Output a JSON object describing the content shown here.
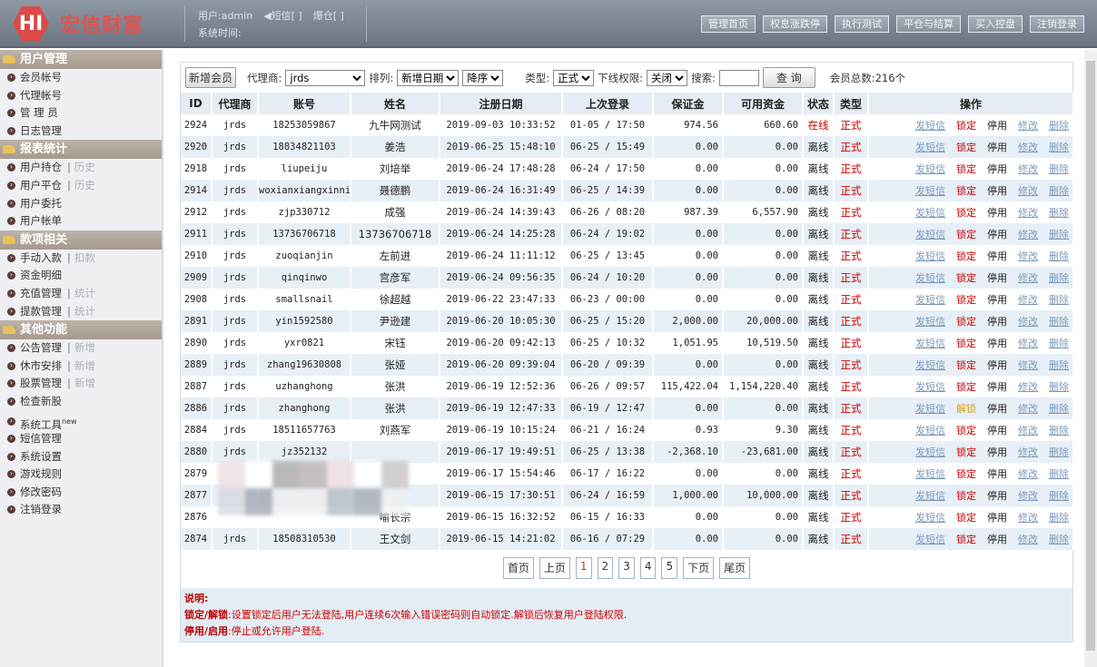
{
  "header": {
    "logo_mark": "HI",
    "logo_text": "宏信财富",
    "user": "用户:admin",
    "sms": "◀短信[ ]",
    "margin_call": "爆仓[ ]",
    "system_time": "系统时间:",
    "buttons": [
      "管理首页",
      "权息涨跌停",
      "执行测试",
      "平仓与结算",
      "买入控盘",
      "注销登录"
    ]
  },
  "sidebar": [
    {
      "title": "用户管理",
      "items": [
        {
          "label": "会员帐号"
        },
        {
          "label": "代理帐号"
        },
        {
          "label": "管 理 员"
        },
        {
          "label": "日志管理"
        }
      ]
    },
    {
      "title": "报表统计",
      "items": [
        {
          "label": "用户持仓",
          "sub": "历史"
        },
        {
          "label": "用户平仓",
          "sub": "历史"
        },
        {
          "label": "用户委托"
        },
        {
          "label": "用户帐单"
        }
      ]
    },
    {
      "title": "款项相关",
      "items": [
        {
          "label": "手动入款",
          "sub": "扣款"
        },
        {
          "label": "资金明细"
        },
        {
          "label": "充值管理",
          "sub": "统计"
        },
        {
          "label": "提款管理",
          "sub": "统计"
        }
      ]
    },
    {
      "title": "其他功能",
      "items": [
        {
          "label": "公告管理",
          "sub": "新增"
        },
        {
          "label": "休市安排",
          "sub": "新增"
        },
        {
          "label": "股票管理",
          "sub": "新增"
        },
        {
          "label": "检查新股"
        },
        {
          "label": "系统工具",
          "sup": "new"
        },
        {
          "label": "短信管理"
        },
        {
          "label": "系统设置"
        },
        {
          "label": "游戏规则"
        },
        {
          "label": "修改密码"
        },
        {
          "label": "注销登录"
        }
      ]
    }
  ],
  "toolbar": {
    "add_member": "新增会员",
    "agent_label": "代理商:",
    "agent_value": "jrds",
    "sort_label": "排列:",
    "sort_value": "新增日期",
    "order_value": "降序",
    "type_label": "类型:",
    "type_value": "正式",
    "downline_label": "下线权限:",
    "downline_value": "关闭",
    "search_label": "搜索:",
    "search_value": "",
    "query": "查 询",
    "total": "会员总数:216个"
  },
  "columns": [
    "ID",
    "代理商",
    "账号",
    "姓名",
    "注册日期",
    "上次登录",
    "保证金",
    "可用资金",
    "状态",
    "类型",
    "操作"
  ],
  "ops": {
    "sms": "发短信",
    "lock": "锁定",
    "unlock": "解锁",
    "disable": "停用",
    "edit": "修改",
    "delete": "删除"
  },
  "rows": [
    [
      "2924",
      "jrds",
      "18253059867",
      "九牛网测试",
      "2019-09-03 10:33:52",
      "01-05 / 17:50",
      "974.56",
      "660.60",
      "在线",
      "正式",
      "锁定"
    ],
    [
      "2920",
      "jrds",
      "18834821103",
      "姜浩",
      "2019-06-25 15:48:10",
      "06-25 / 15:49",
      "0.00",
      "0.00",
      "离线",
      "正式",
      "锁定"
    ],
    [
      "2918",
      "jrds",
      "liupeiju",
      "刘培举",
      "2019-06-24 17:48:28",
      "06-24 / 17:50",
      "0.00",
      "0.00",
      "离线",
      "正式",
      "锁定"
    ],
    [
      "2914",
      "jrds",
      "woxianxiangxinni",
      "聂德鹏",
      "2019-06-24 16:31:49",
      "06-25 / 14:39",
      "0.00",
      "0.00",
      "离线",
      "正式",
      "锁定"
    ],
    [
      "2912",
      "jrds",
      "zjp330712",
      "成强",
      "2019-06-24 14:39:43",
      "06-26 / 08:20",
      "987.39",
      "6,557.90",
      "离线",
      "正式",
      "锁定"
    ],
    [
      "2911",
      "jrds",
      "13736706718",
      "13736706718",
      "2019-06-24 14:25:28",
      "06-24 / 19:02",
      "0.00",
      "0.00",
      "离线",
      "正式",
      "锁定"
    ],
    [
      "2910",
      "jrds",
      "zuoqianjin",
      "左前进",
      "2019-06-24 11:11:12",
      "06-25 / 13:45",
      "0.00",
      "0.00",
      "离线",
      "正式",
      "锁定"
    ],
    [
      "2909",
      "jrds",
      "qinqinwo",
      "宫彦军",
      "2019-06-24 09:56:35",
      "06-24 / 10:20",
      "0.00",
      "0.00",
      "离线",
      "正式",
      "锁定"
    ],
    [
      "2908",
      "jrds",
      "smallsnail",
      "徐超越",
      "2019-06-22 23:47:33",
      "06-23 / 00:00",
      "0.00",
      "0.00",
      "离线",
      "正式",
      "锁定"
    ],
    [
      "2891",
      "jrds",
      "yin1592580",
      "尹逊建",
      "2019-06-20 10:05:30",
      "06-25 / 15:20",
      "2,000.00",
      "20,000.00",
      "离线",
      "正式",
      "锁定"
    ],
    [
      "2890",
      "jrds",
      "yxr0821",
      "宋钰",
      "2019-06-20 09:42:13",
      "06-25 / 10:32",
      "1,051.95",
      "10,519.50",
      "离线",
      "正式",
      "锁定"
    ],
    [
      "2889",
      "jrds",
      "zhang19630808",
      "张娅",
      "2019-06-20 09:39:04",
      "06-20 / 09:39",
      "0.00",
      "0.00",
      "离线",
      "正式",
      "锁定"
    ],
    [
      "2887",
      "jrds",
      "uzhanghong",
      "张洪",
      "2019-06-19 12:52:36",
      "06-26 / 09:57",
      "115,422.04",
      "1,154,220.40",
      "离线",
      "正式",
      "锁定"
    ],
    [
      "2886",
      "jrds",
      "zhanghong",
      "张洪",
      "2019-06-19 12:47:33",
      "06-19 / 12:47",
      "0.00",
      "0.00",
      "离线",
      "正式",
      "解锁"
    ],
    [
      "2884",
      "jrds",
      "18511657763",
      "刘燕军",
      "2019-06-19 10:15:24",
      "06-21 / 16:24",
      "0.93",
      "9.30",
      "离线",
      "正式",
      "锁定"
    ],
    [
      "2880",
      "jrds",
      "jz352132",
      "",
      "2019-06-17 19:49:51",
      "06-25 / 13:38",
      "-2,368.10",
      "-23,681.00",
      "离线",
      "正式",
      "锁定"
    ],
    [
      "2879",
      "",
      "",
      "",
      "2019-06-17 15:54:46",
      "06-17 / 16:22",
      "0.00",
      "0.00",
      "离线",
      "正式",
      "锁定"
    ],
    [
      "2877",
      "",
      "",
      "",
      "2019-06-15 17:30:51",
      "06-24 / 16:59",
      "1,000.00",
      "10,000.00",
      "离线",
      "正式",
      "锁定"
    ],
    [
      "2876",
      "",
      "",
      "喻长宗",
      "2019-06-15 16:32:52",
      "06-15 / 16:33",
      "0.00",
      "0.00",
      "离线",
      "正式",
      "锁定"
    ],
    [
      "2874",
      "jrds",
      "18508310530",
      "王文剑",
      "2019-06-15 14:21:02",
      "06-16 / 07:29",
      "0.00",
      "0.00",
      "离线",
      "正式",
      "锁定"
    ]
  ],
  "pager": {
    "first": "首页",
    "prev": "上页",
    "pages": [
      "1",
      "2",
      "3",
      "4",
      "5"
    ],
    "current": "1",
    "next": "下页",
    "last": "尾页"
  },
  "notes": {
    "title": "说明:",
    "lock_term": "锁定/解锁",
    "lock_text": ":设置锁定后用户无法登陆,用户连续6次输入错误密码则自动锁定.解锁后恢复用户登陆权限.",
    "disable_term": "停用/启用",
    "disable_text": ":停止或允许用户登陆."
  },
  "colors": {
    "accent_red": "#cc0000",
    "link": "#7a9ab8",
    "unlock": "#d9a520",
    "row_alt": "#e7eff7"
  }
}
